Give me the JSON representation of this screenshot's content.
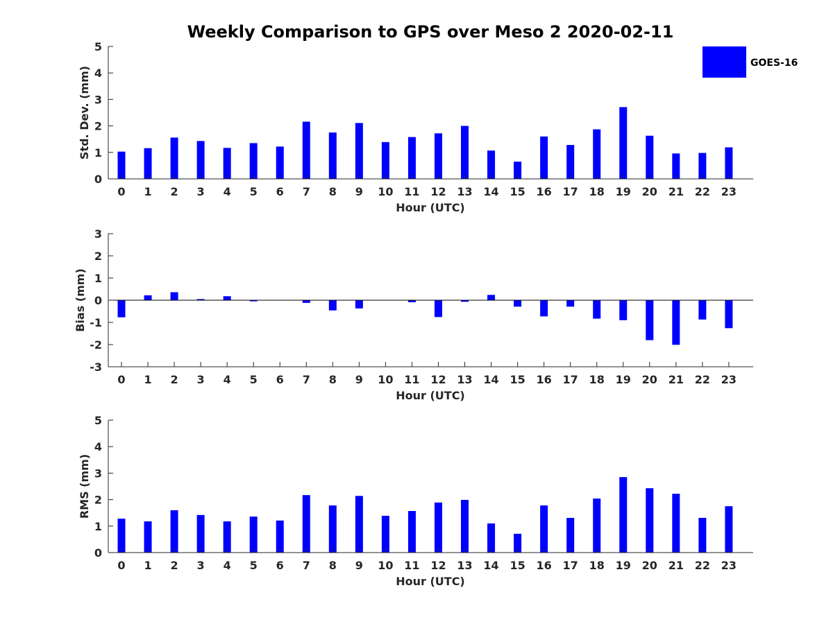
{
  "title": "Weekly Comparison to GPS over Meso 2 2020-02-11",
  "legend": {
    "label": "GOES-16",
    "color": "#0000ff"
  },
  "chart_data": [
    {
      "type": "bar",
      "name": "std-dev",
      "ylabel": "Std. Dev. (mm)",
      "xlabel": "Hour (UTC)",
      "ylim": [
        0,
        5
      ],
      "yticks": [
        0,
        1,
        2,
        3,
        4,
        5
      ],
      "categories": [
        "0",
        "1",
        "2",
        "3",
        "4",
        "5",
        "6",
        "7",
        "8",
        "9",
        "10",
        "11",
        "12",
        "13",
        "14",
        "15",
        "16",
        "17",
        "18",
        "19",
        "20",
        "21",
        "22",
        "23"
      ],
      "series": [
        {
          "name": "GOES-16",
          "color": "#0000ff",
          "values": [
            1.03,
            1.16,
            1.56,
            1.43,
            1.17,
            1.35,
            1.22,
            2.16,
            1.75,
            2.11,
            1.39,
            1.58,
            1.72,
            2.0,
            1.07,
            0.65,
            1.6,
            1.28,
            1.87,
            2.71,
            1.63,
            0.96,
            0.98,
            1.19
          ]
        }
      ]
    },
    {
      "type": "bar",
      "name": "bias",
      "ylabel": "Bias (mm)",
      "xlabel": "Hour (UTC)",
      "ylim": [
        -3,
        3
      ],
      "yticks": [
        -3,
        -2,
        -1,
        0,
        1,
        2,
        3
      ],
      "categories": [
        "0",
        "1",
        "2",
        "3",
        "4",
        "5",
        "6",
        "7",
        "8",
        "9",
        "10",
        "11",
        "12",
        "13",
        "14",
        "15",
        "16",
        "17",
        "18",
        "19",
        "20",
        "21",
        "22",
        "23"
      ],
      "series": [
        {
          "name": "GOES-16",
          "color": "#0000ff",
          "values": [
            -0.77,
            0.22,
            0.36,
            0.05,
            0.18,
            -0.05,
            0.0,
            -0.12,
            -0.46,
            -0.37,
            0.0,
            -0.09,
            -0.76,
            -0.07,
            0.24,
            -0.29,
            -0.73,
            -0.29,
            -0.83,
            -0.9,
            -1.8,
            -2.01,
            -0.87,
            -1.26
          ]
        }
      ]
    },
    {
      "type": "bar",
      "name": "rms",
      "ylabel": "RMS (mm)",
      "xlabel": "Hour (UTC)",
      "ylim": [
        0,
        5
      ],
      "yticks": [
        0,
        1,
        2,
        3,
        4,
        5
      ],
      "categories": [
        "0",
        "1",
        "2",
        "3",
        "4",
        "5",
        "6",
        "7",
        "8",
        "9",
        "10",
        "11",
        "12",
        "13",
        "14",
        "15",
        "16",
        "17",
        "18",
        "19",
        "20",
        "21",
        "22",
        "23"
      ],
      "series": [
        {
          "name": "GOES-16",
          "color": "#0000ff",
          "values": [
            1.28,
            1.18,
            1.6,
            1.42,
            1.18,
            1.36,
            1.21,
            2.17,
            1.78,
            2.14,
            1.39,
            1.57,
            1.89,
            1.99,
            1.1,
            0.71,
            1.78,
            1.31,
            2.04,
            2.85,
            2.43,
            2.22,
            1.31,
            1.75
          ]
        }
      ]
    }
  ]
}
